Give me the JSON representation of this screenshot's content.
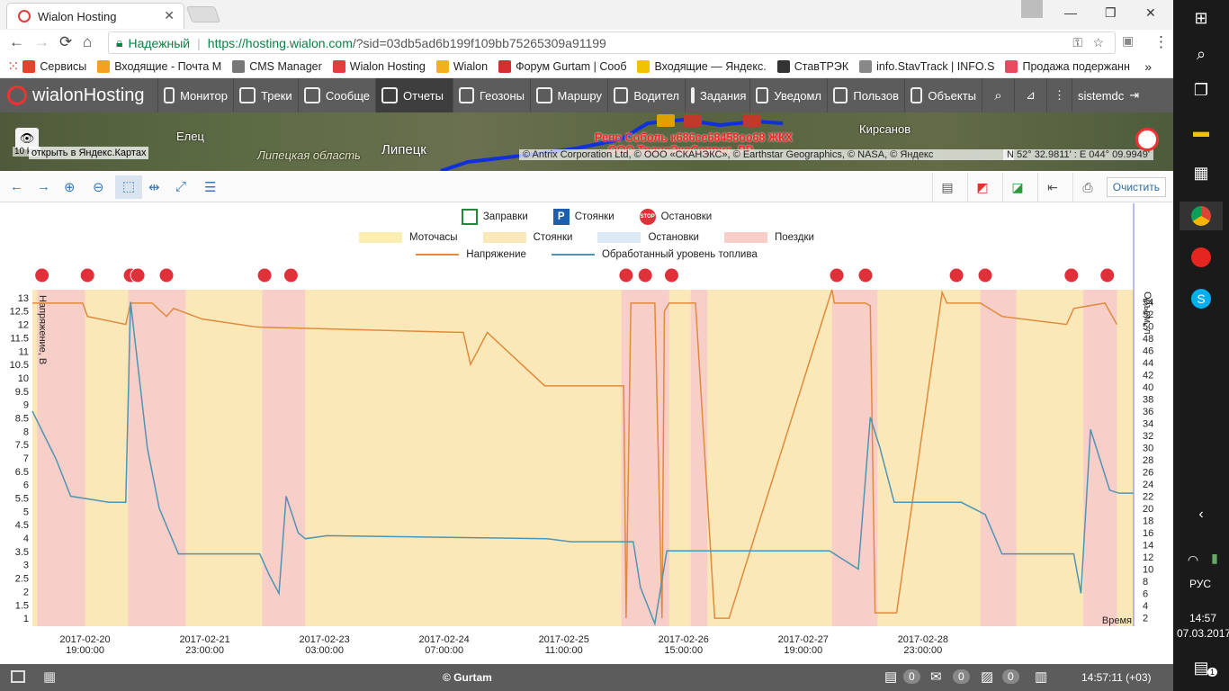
{
  "browser": {
    "tab_title": "Wialon Hosting",
    "security_label": "Надежный",
    "url_host": "https://hosting.wialon.com",
    "url_rest": "/?sid=03db5ad6b199f109bb75265309a91199",
    "bookmarks": [
      {
        "label": "Сервисы",
        "color": "#e0442c"
      },
      {
        "label": "Входящие - Почта М",
        "color": "#f4a020"
      },
      {
        "label": "CMS Manager",
        "color": "#777777"
      },
      {
        "label": "Wialon Hosting",
        "color": "#e23d3d"
      },
      {
        "label": "Wialon",
        "color": "#f2b01e"
      },
      {
        "label": "Форум Gurtam | Сооб",
        "color": "#d32f2f"
      },
      {
        "label": "Входящие — Яндекс.",
        "color": "#f2c200"
      },
      {
        "label": "СтавТРЭК",
        "color": "#333333"
      },
      {
        "label": "info.StavTrack | INFO.S",
        "color": "#888888"
      },
      {
        "label": "Продажа подержанн",
        "color": "#e84a5f"
      }
    ]
  },
  "app": {
    "logo": "wialonHosting",
    "nav": [
      {
        "label": "Монитор",
        "w": 84
      },
      {
        "label": "Треки",
        "w": 72
      },
      {
        "label": "Сообще",
        "w": 86
      },
      {
        "label": "Отчеты",
        "w": 86
      },
      {
        "label": "Геозоны",
        "w": 86
      },
      {
        "label": "Маршру",
        "w": 86
      },
      {
        "label": "Водител",
        "w": 86
      },
      {
        "label": "Задания",
        "w": 72
      },
      {
        "label": "Уведомл",
        "w": 86
      },
      {
        "label": "Пользов",
        "w": 86
      },
      {
        "label": "Объекты",
        "w": 86
      }
    ],
    "user": "sistemdc"
  },
  "map": {
    "labels": [
      {
        "text": "Елец"
      },
      {
        "text": "Липецк"
      },
      {
        "text": "Липецкая область"
      },
      {
        "text": "Кирсанов"
      }
    ],
    "open_yandex": "открыть в Яндекс.Картах",
    "scale": "10 km",
    "unit_label1": "Рено Соболь к686се68458оо68 ЖКХ",
    "unit_label2": "ООО ТрансЭкоСервис_РР",
    "attribution": "© Antrix Corporation Ltd, © ООО «СКАНЭКС», © Earthstar Geographics, © NASA, © Яндекс",
    "coords": "N 52° 32.9811' : E 044° 09.9949'"
  },
  "chart_tools": {
    "clear_label": "Очистить"
  },
  "legend": {
    "markers": [
      "Заправки",
      "Стоянки",
      "Остановки"
    ],
    "intervals": [
      {
        "label": "Моточасы",
        "color": "#fbeeb0"
      },
      {
        "label": "Стоянки",
        "color": "#fbe8b8"
      },
      {
        "label": "Остановки",
        "color": "#dce9f5"
      },
      {
        "label": "Поездки",
        "color": "#f8cfc8"
      }
    ],
    "series": [
      {
        "label": "Напряжение",
        "color": "#e08a3c"
      },
      {
        "label": "Обработанный уровень топлива",
        "color": "#4f95b3"
      }
    ]
  },
  "chart_data": {
    "type": "line",
    "ylabel_left": "Напряжение, В",
    "ylabel_right": "Объем, л",
    "xlabel": "Время",
    "y_left_ticks": [
      "1",
      "1.5",
      "2",
      "2.5",
      "3",
      "3.5",
      "4",
      "4.5",
      "5",
      "5.5",
      "6",
      "6.5",
      "7",
      "7.5",
      "8",
      "8.5",
      "9",
      "9.5",
      "10",
      "10.5",
      "11",
      "11.5",
      "12",
      "12.5",
      "13"
    ],
    "y_right_ticks": [
      "2",
      "4",
      "6",
      "8",
      "10",
      "12",
      "14",
      "16",
      "18",
      "20",
      "22",
      "24",
      "26",
      "28",
      "30",
      "32",
      "34",
      "36",
      "38",
      "40",
      "42",
      "44",
      "46",
      "48",
      "50",
      "52",
      "54"
    ],
    "x_ticks": [
      {
        "date": "2017-02-20",
        "time": "19:00:00"
      },
      {
        "date": "2017-02-21",
        "time": "23:00:00"
      },
      {
        "date": "2017-02-23",
        "time": "03:00:00"
      },
      {
        "date": "2017-02-24",
        "time": "07:00:00"
      },
      {
        "date": "2017-02-25",
        "time": "11:00:00"
      },
      {
        "date": "2017-02-26",
        "time": "15:00:00"
      },
      {
        "date": "2017-02-27",
        "time": "19:00:00"
      },
      {
        "date": "2017-02-28",
        "time": "23:00:00"
      }
    ],
    "ylim_left": [
      0.7,
      13.3
    ],
    "ylim_right": [
      0.6,
      56
    ],
    "voltage": [
      [
        0,
        12.8
      ],
      [
        0.3,
        12.8
      ],
      [
        2.1,
        12.8
      ],
      [
        2.3,
        12.3
      ],
      [
        3.9,
        12.0
      ],
      [
        4.1,
        12.8
      ],
      [
        5.0,
        12.8
      ],
      [
        5.6,
        12.3
      ],
      [
        5.9,
        12.6
      ],
      [
        7.1,
        12.2
      ],
      [
        9.4,
        11.9
      ],
      [
        18.0,
        11.7
      ],
      [
        18.3,
        10.5
      ],
      [
        19.0,
        11.7
      ],
      [
        21.4,
        9.7
      ],
      [
        21.9,
        9.7
      ],
      [
        24.7,
        9.7
      ],
      [
        24.8,
        1.0
      ],
      [
        25.0,
        12.8
      ],
      [
        26.0,
        12.8
      ],
      [
        26.3,
        1.0
      ],
      [
        26.4,
        12.5
      ],
      [
        26.6,
        12.8
      ],
      [
        27.7,
        12.8
      ],
      [
        28.5,
        1.0
      ],
      [
        29.1,
        1.0
      ],
      [
        33.4,
        13.3
      ],
      [
        33.5,
        12.8
      ],
      [
        34.8,
        12.8
      ],
      [
        35.0,
        12.7
      ],
      [
        35.2,
        1.2
      ],
      [
        36.1,
        1.2
      ],
      [
        38.0,
        13.2
      ],
      [
        38.2,
        12.8
      ],
      [
        39.6,
        12.8
      ],
      [
        40.5,
        12.3
      ],
      [
        43.2,
        12.0
      ],
      [
        43.5,
        12.6
      ],
      [
        44.8,
        12.8
      ],
      [
        45.3,
        12.0
      ]
    ],
    "fuel": [
      [
        0,
        36
      ],
      [
        1.0,
        28
      ],
      [
        1.6,
        22
      ],
      [
        3.2,
        21
      ],
      [
        3.9,
        21
      ],
      [
        4.1,
        54
      ],
      [
        4.8,
        30
      ],
      [
        5.3,
        20
      ],
      [
        6.1,
        12.5
      ],
      [
        9.5,
        12.5
      ],
      [
        9.9,
        9
      ],
      [
        10.3,
        6
      ],
      [
        10.6,
        22
      ],
      [
        11.1,
        16
      ],
      [
        11.4,
        15
      ],
      [
        12.3,
        15.5
      ],
      [
        21.5,
        15
      ],
      [
        22.5,
        14.5
      ],
      [
        25.1,
        14.5
      ],
      [
        25.4,
        7
      ],
      [
        26.0,
        1
      ],
      [
        26.5,
        13
      ],
      [
        27.1,
        13
      ],
      [
        33.3,
        13
      ],
      [
        34.5,
        10
      ],
      [
        35.0,
        35
      ],
      [
        35.4,
        30
      ],
      [
        36.0,
        21
      ],
      [
        38.4,
        21
      ],
      [
        38.8,
        21
      ],
      [
        39.8,
        19
      ],
      [
        40.5,
        12.5
      ],
      [
        43.5,
        12.5
      ],
      [
        43.8,
        6
      ],
      [
        44.2,
        33
      ],
      [
        44.6,
        28
      ],
      [
        45.0,
        23
      ],
      [
        45.4,
        22.5
      ],
      [
        46.0,
        22.5
      ]
    ]
  },
  "status": {
    "copyright": "© Gurtam",
    "counts": [
      "0",
      "0",
      "0"
    ],
    "time": "14:57:11 (+03)"
  },
  "taskbar": {
    "lang": "РУС",
    "time": "14:57",
    "date": "07.03.2017",
    "notif": "1"
  }
}
